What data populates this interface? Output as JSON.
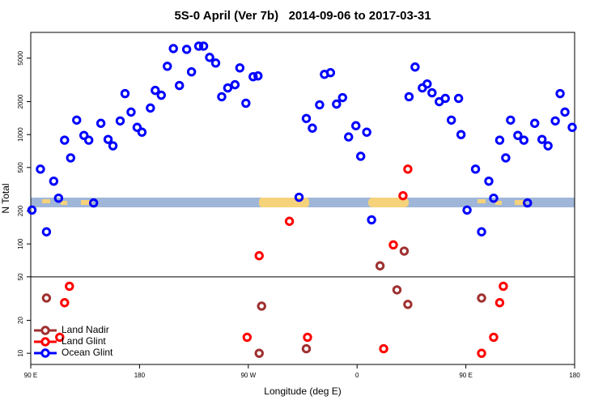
{
  "chart_data": {
    "type": "scatter",
    "title": "5S-0 April (Ver 7b)   2014-09-06 to 2017-03-31",
    "x_label": "Longitude (deg E)",
    "y_label": "N Total",
    "xlim": [
      90,
      540
    ],
    "xticks": [
      {
        "value": 90,
        "label": "90 E"
      },
      {
        "value": 180,
        "label": "180"
      },
      {
        "value": 270,
        "label": "90 W"
      },
      {
        "value": 360,
        "label": "0"
      },
      {
        "value": 450,
        "label": "90 E"
      },
      {
        "value": 540,
        "label": "180"
      }
    ],
    "ylim": [
      7.9,
      8600
    ],
    "log_y": true,
    "yticks": [
      10,
      20,
      50,
      100,
      200,
      500,
      1000,
      2000,
      5000
    ],
    "reference_line": 50,
    "legend": "bottom-left",
    "series": [
      {
        "name": "Land Nadir",
        "color": "#a03030",
        "x": [
          103,
          281,
          318,
          279,
          379,
          393,
          399,
          402,
          463
        ],
        "values": [
          32,
          27,
          11,
          10,
          63,
          38,
          86,
          28,
          32
        ]
      },
      {
        "name": "Land Glint",
        "color": "#ff0000",
        "x": [
          122,
          118,
          114,
          269,
          279,
          304,
          319,
          382,
          390,
          398,
          402,
          463,
          473,
          478,
          481
        ],
        "values": [
          41,
          29,
          14,
          14,
          78,
          161,
          14,
          11,
          98,
          276,
          483,
          10,
          14,
          29,
          41
        ]
      },
      {
        "name": "Ocean Glint",
        "color": "#0000ff",
        "x": [
          91,
          98,
          103,
          109,
          113,
          118,
          123,
          128,
          134,
          138,
          142,
          148,
          154,
          158,
          164,
          168,
          173,
          178,
          182,
          189,
          193,
          198,
          203,
          208,
          213,
          219,
          223,
          229,
          233,
          238,
          243,
          248,
          253,
          259,
          263,
          268,
          274,
          278,
          312,
          318,
          323,
          329,
          333,
          338,
          343,
          348,
          353,
          359,
          363,
          368,
          372,
          403,
          408,
          414,
          418,
          422,
          428,
          433,
          438,
          444,
          446,
          451,
          458,
          463,
          469,
          473,
          478,
          483,
          487,
          493,
          498,
          501,
          507,
          513,
          518,
          524,
          528,
          532,
          538
        ],
        "values": [
          204,
          483,
          129,
          375,
          262,
          889,
          612,
          1357,
          983,
          889,
          237,
          1268,
          903,
          789,
          1334,
          2371,
          1607,
          1164,
          1052,
          1749,
          2535,
          2291,
          4217,
          6120,
          2810,
          6015,
          3748,
          6442,
          6442,
          5080,
          4510,
          2218,
          2670,
          2857,
          4074,
          1936,
          3383,
          3443,
          267,
          1403,
          1145,
          1871,
          3556,
          3683,
          1901,
          2178,
          951,
          1205,
          633,
          1052,
          166,
          2218,
          4148,
          2670,
          2904,
          2410,
          2000,
          2143,
          1357,
          2143,
          1000,
          204,
          483,
          129,
          375,
          262,
          889,
          612,
          1357,
          983,
          889,
          237,
          1268,
          903,
          789,
          1334,
          2371,
          1607,
          1164
        ]
      }
    ]
  }
}
